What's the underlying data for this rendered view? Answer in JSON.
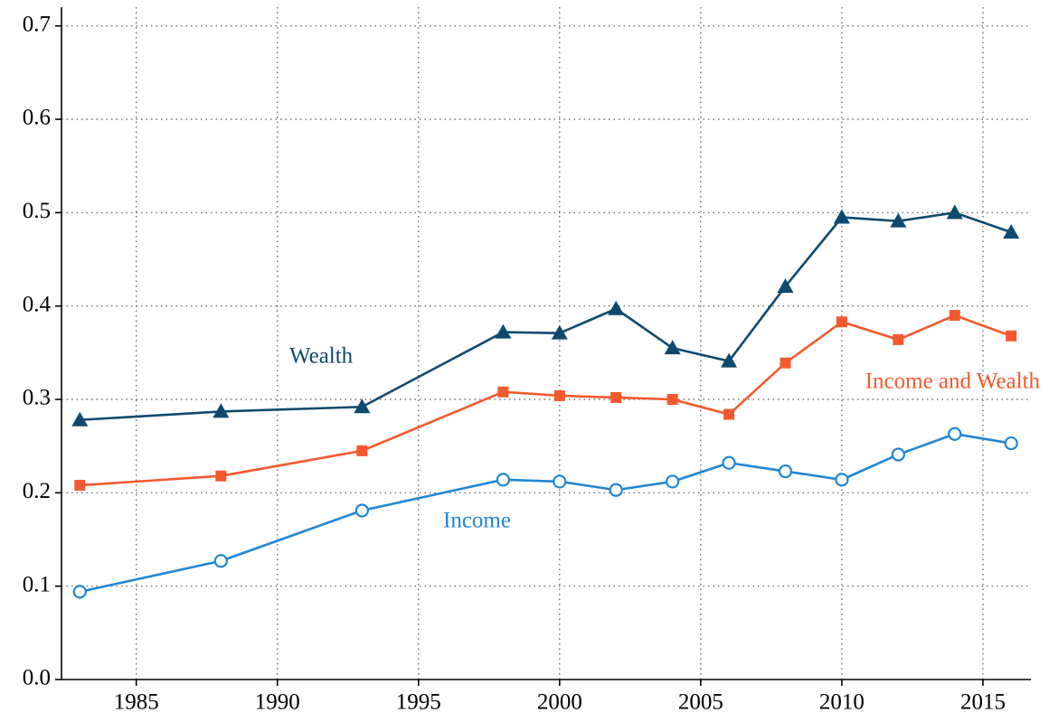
{
  "chart_data": {
    "type": "line",
    "x": [
      1983,
      1988,
      1993,
      1998,
      2000,
      2002,
      2004,
      2006,
      2008,
      2010,
      2012,
      2014,
      2016
    ],
    "series": [
      {
        "name": "Wealth",
        "color": "#0d4a6e",
        "marker": "triangle",
        "values": [
          0.278,
          0.287,
          0.292,
          0.372,
          0.371,
          0.397,
          0.355,
          0.341,
          0.421,
          0.495,
          0.491,
          0.5,
          0.479
        ]
      },
      {
        "name": "Income and Wealth",
        "color": "#f4592e",
        "marker": "square",
        "values": [
          0.208,
          0.218,
          0.245,
          0.308,
          0.304,
          0.302,
          0.3,
          0.284,
          0.339,
          0.383,
          0.364,
          0.39,
          0.368
        ]
      },
      {
        "name": "Income",
        "color": "#2186d4",
        "marker": "open-circle",
        "values": [
          0.094,
          0.127,
          0.181,
          0.214,
          0.212,
          0.203,
          0.212,
          0.232,
          0.223,
          0.214,
          0.241,
          0.263,
          0.253
        ]
      }
    ],
    "xlim": [
      1982.35,
      2016.7
    ],
    "xticks": [
      1985,
      1990,
      1995,
      2000,
      2005,
      2010,
      2015
    ],
    "ylim": [
      0,
      0.72
    ],
    "yticks": [
      {
        "value": 0,
        "label": "0.0"
      },
      0.1,
      0.2,
      0.3,
      0.4,
      0.5,
      0.6,
      0.7
    ],
    "grid": true
  }
}
